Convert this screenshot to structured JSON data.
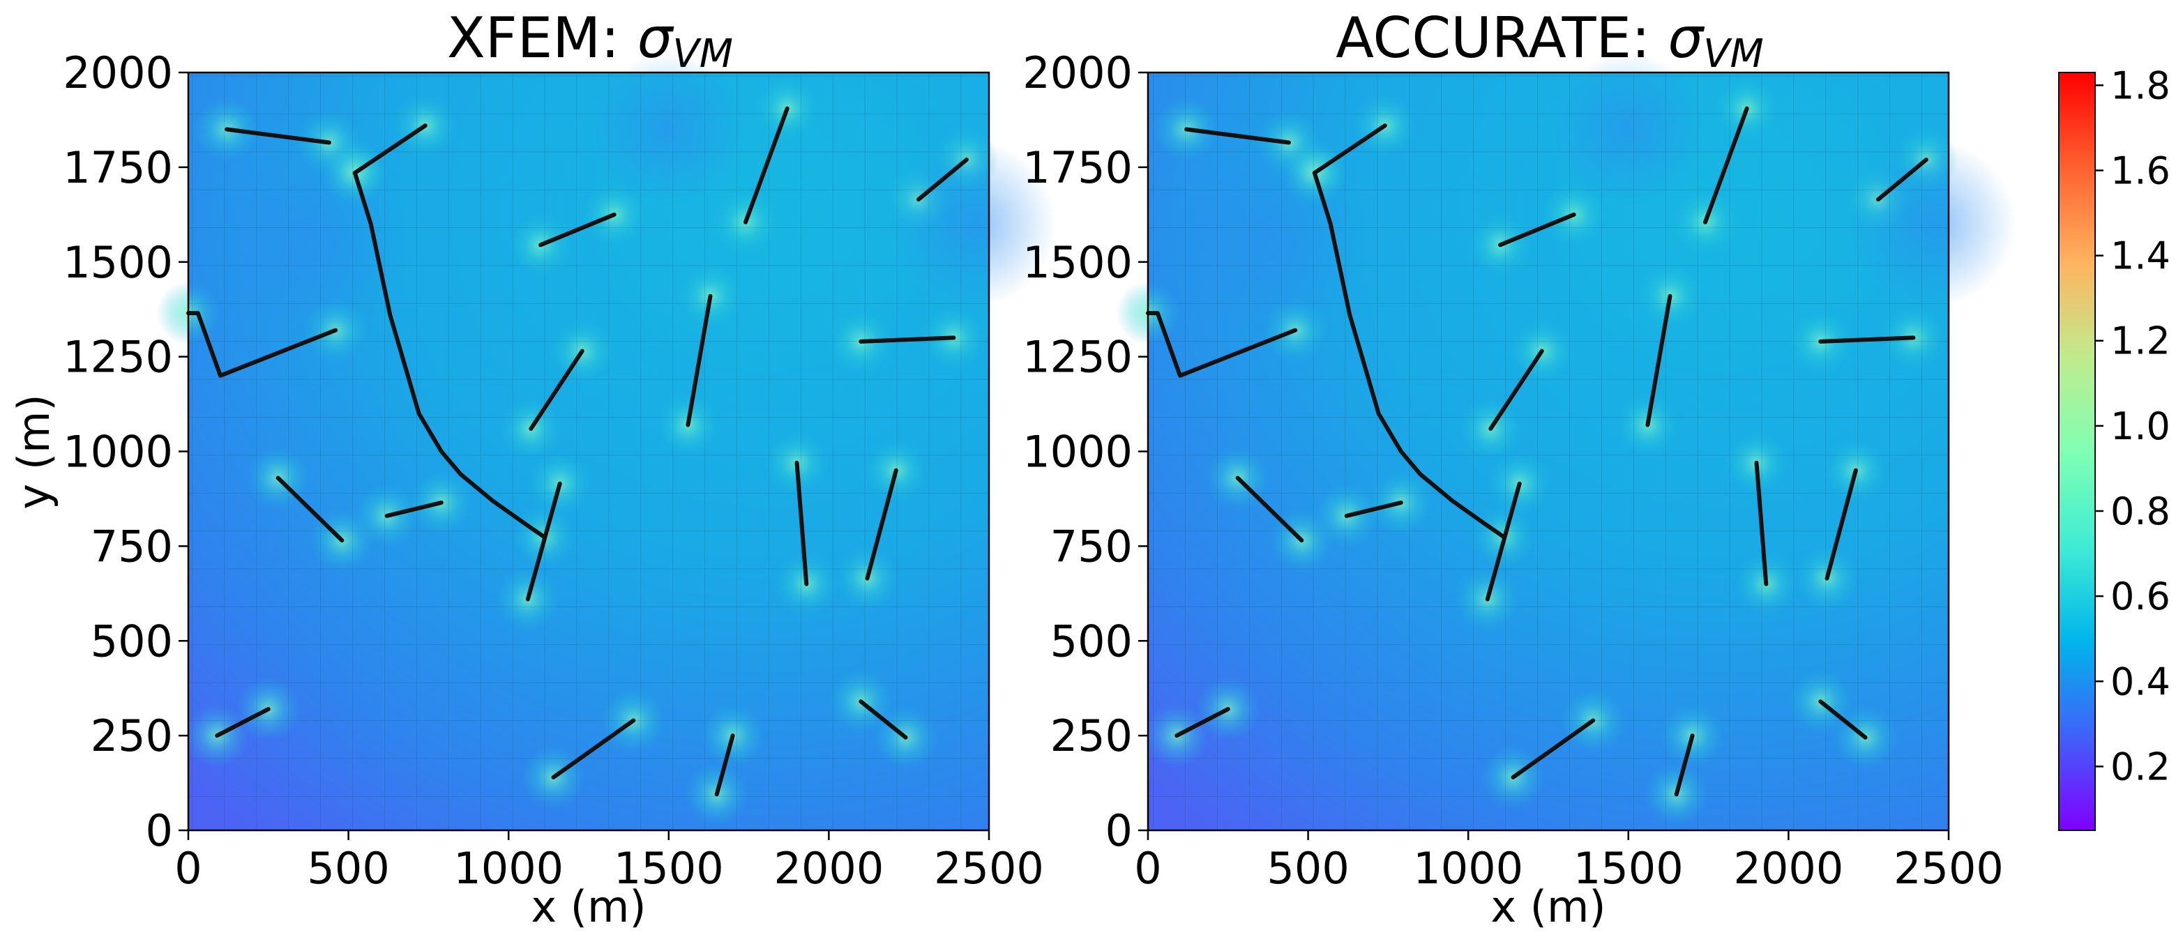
{
  "chart_data": [
    {
      "type": "heatmap",
      "title_prefix": "XFEM: ",
      "title_symbol": "σ",
      "title_subscript": "VM",
      "xlabel": "x (m)",
      "ylabel": "y (m)",
      "xlim": [
        0,
        2500
      ],
      "ylim": [
        0,
        2000
      ],
      "xticks": [
        "0",
        "500",
        "1000",
        "1500",
        "2000",
        "2500"
      ],
      "yticks": [
        "0",
        "250",
        "500",
        "750",
        "1000",
        "1250",
        "1500",
        "1750",
        "2000"
      ],
      "grid": "mesh 25 x 20 elements",
      "field_description": "von Mises stress, lowest (~0.3) at bottom-left, ~0.5-0.6 in upper region, local highs (~0.7) at fracture tips"
    },
    {
      "type": "heatmap",
      "title_prefix": "ACCURATE: ",
      "title_symbol": "σ",
      "title_subscript": "VM",
      "xlabel": "x (m)",
      "ylabel": "",
      "xlim": [
        0,
        2500
      ],
      "ylim": [
        0,
        2000
      ],
      "xticks": [
        "0",
        "500",
        "1000",
        "1500",
        "2000",
        "2500"
      ],
      "yticks": [
        "0",
        "250",
        "500",
        "750",
        "1000",
        "1250",
        "1500",
        "1750",
        "2000"
      ],
      "grid": "mesh 25 x 20 elements"
    }
  ],
  "fractures": [
    [
      [
        120,
        1850
      ],
      [
        440,
        1815
      ]
    ],
    [
      [
        520,
        1735
      ],
      [
        740,
        1860
      ]
    ],
    [
      [
        1100,
        1545
      ],
      [
        1330,
        1625
      ]
    ],
    [
      [
        1740,
        1605
      ],
      [
        1870,
        1905
      ]
    ],
    [
      [
        2280,
        1665
      ],
      [
        2430,
        1770
      ]
    ],
    [
      [
        0,
        1365
      ],
      [
        30,
        1365
      ],
      [
        100,
        1200
      ],
      [
        460,
        1320
      ]
    ],
    [
      [
        520,
        1735
      ],
      [
        570,
        1600
      ],
      [
        630,
        1360
      ],
      [
        720,
        1100
      ],
      [
        790,
        1000
      ],
      [
        850,
        940
      ],
      [
        950,
        870
      ],
      [
        1050,
        810
      ],
      [
        1110,
        775
      ]
    ],
    [
      [
        1070,
        1060
      ],
      [
        1230,
        1265
      ]
    ],
    [
      [
        1560,
        1070
      ],
      [
        1630,
        1410
      ]
    ],
    [
      [
        2100,
        1290
      ],
      [
        2390,
        1300
      ]
    ],
    [
      [
        280,
        930
      ],
      [
        480,
        765
      ]
    ],
    [
      [
        620,
        830
      ],
      [
        790,
        865
      ]
    ],
    [
      [
        1060,
        610
      ],
      [
        1160,
        915
      ]
    ],
    [
      [
        1900,
        970
      ],
      [
        1930,
        650
      ]
    ],
    [
      [
        2120,
        665
      ],
      [
        2210,
        950
      ]
    ],
    [
      [
        90,
        250
      ],
      [
        250,
        320
      ]
    ],
    [
      [
        1140,
        140
      ],
      [
        1390,
        290
      ]
    ],
    [
      [
        1650,
        95
      ],
      [
        1700,
        250
      ]
    ],
    [
      [
        2100,
        340
      ],
      [
        2240,
        245
      ]
    ]
  ],
  "colorbar": {
    "min": 0.05,
    "max": 1.83,
    "ticks": [
      "0.2",
      "0.4",
      "0.6",
      "0.8",
      "1.0",
      "1.2",
      "1.4",
      "1.6",
      "1.8"
    ],
    "colormap": "rainbow"
  }
}
